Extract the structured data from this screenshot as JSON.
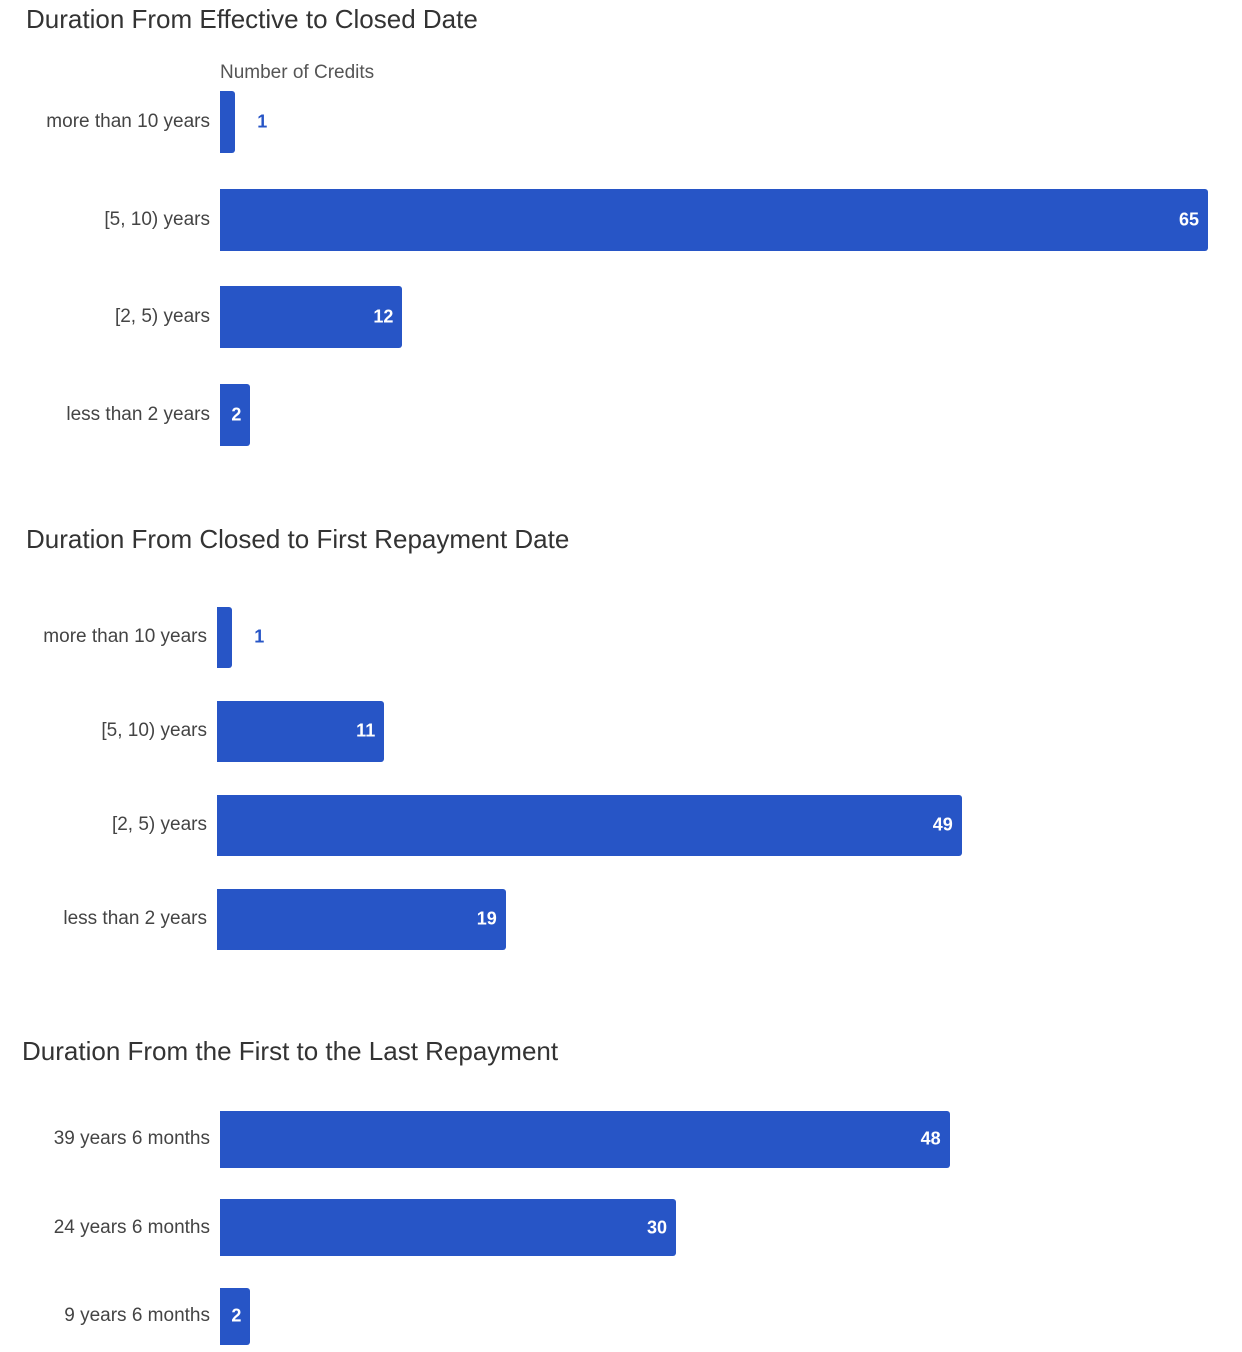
{
  "chart_data": [
    {
      "type": "bar",
      "orientation": "horizontal",
      "title": "Duration From Effective to Closed Date",
      "xlabel": "Number of Credits",
      "categories": [
        "more than 10 years",
        "[5, 10) years",
        "[2, 5) years",
        "less than 2 years"
      ],
      "values": [
        1,
        65,
        12,
        2
      ],
      "xlim": [
        0,
        65
      ],
      "color": "#2755c6"
    },
    {
      "type": "bar",
      "orientation": "horizontal",
      "title": "Duration From Closed to First Repayment Date",
      "xlabel": "",
      "categories": [
        "more than 10 years",
        "[5, 10) years",
        "[2, 5) years",
        "less than 2 years"
      ],
      "values": [
        1,
        11,
        49,
        19
      ],
      "xlim": [
        0,
        65
      ],
      "color": "#2755c6"
    },
    {
      "type": "bar",
      "orientation": "horizontal",
      "title": "Duration From the First to the Last Repayment",
      "xlabel": "",
      "categories": [
        "39 years 6 months",
        "24 years 6 months",
        "9 years 6 months"
      ],
      "values": [
        48,
        30,
        2
      ],
      "xlim": [
        0,
        65
      ],
      "color": "#2755c6"
    }
  ]
}
